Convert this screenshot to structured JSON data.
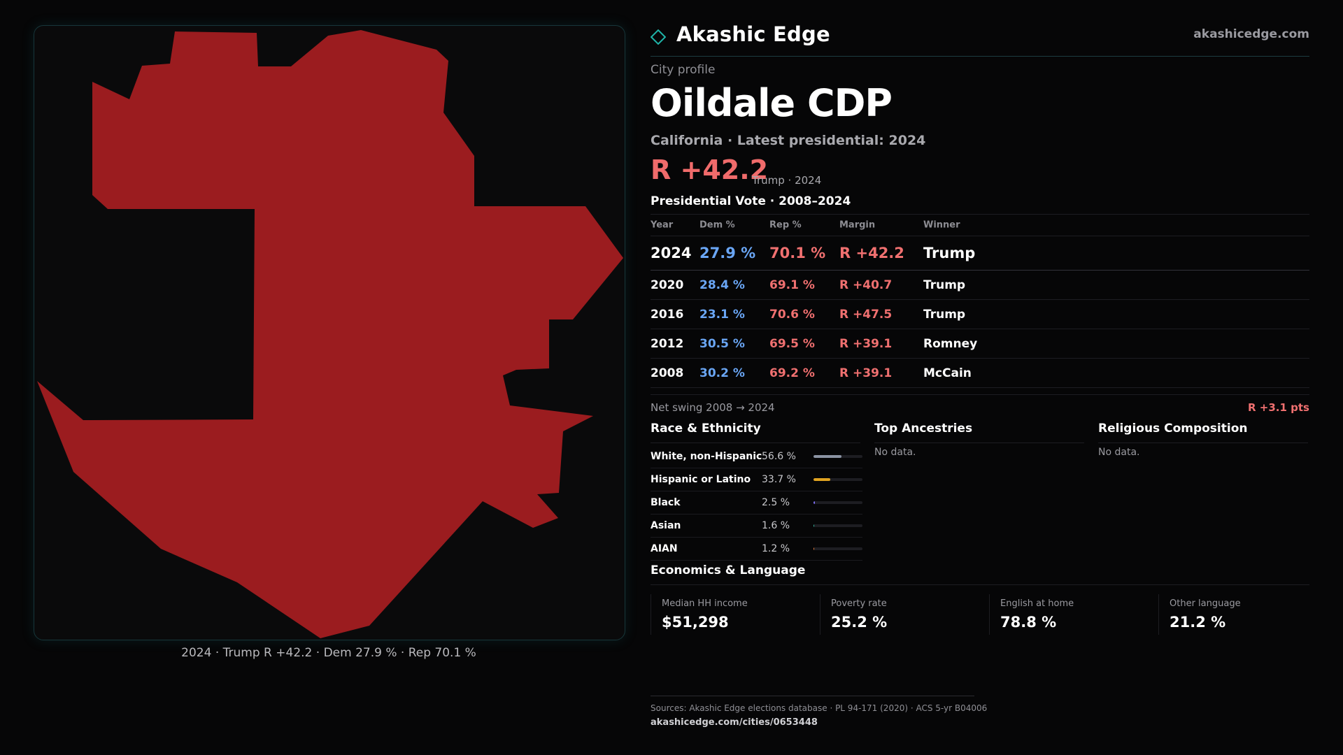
{
  "brand": {
    "name": "Akashic Edge",
    "site": "akashicedge.com",
    "accent": "#1fb3a8"
  },
  "map": {
    "fill_color": "#9b1c1f",
    "caption": "2024 · Trump R +42.2 · Dem 27.9 % · Rep 70.1 %"
  },
  "profile": {
    "eyebrow": "City profile",
    "title": "Oildale CDP",
    "subtitle": "California · Latest presidential: 2024",
    "margin": "R +42.2",
    "margin_sub": "Trump · 2024"
  },
  "vote": {
    "title": "Presidential Vote · 2008–2024",
    "headers": [
      "Year",
      "Dem %",
      "Rep %",
      "Margin",
      "Winner"
    ],
    "rows": [
      {
        "year": "2024",
        "dem": "27.9 %",
        "rep": "70.1 %",
        "margin": "R +42.2",
        "winner": "Trump"
      },
      {
        "year": "2020",
        "dem": "28.4 %",
        "rep": "69.1 %",
        "margin": "R +40.7",
        "winner": "Trump"
      },
      {
        "year": "2016",
        "dem": "23.1 %",
        "rep": "70.6 %",
        "margin": "R +47.5",
        "winner": "Trump"
      },
      {
        "year": "2012",
        "dem": "30.5 %",
        "rep": "69.5 %",
        "margin": "R +39.1",
        "winner": "Romney"
      },
      {
        "year": "2008",
        "dem": "30.2 %",
        "rep": "69.2 %",
        "margin": "R +39.1",
        "winner": "McCain"
      }
    ],
    "swing_label": "Net swing 2008 → 2024",
    "swing_value": "R +3.1 pts"
  },
  "race": {
    "title": "Race & Ethnicity",
    "rows": [
      {
        "name": "White, non-Hispanic",
        "pct": "56.6 %",
        "share": 0.566,
        "color": "#8b93a3"
      },
      {
        "name": "Hispanic or Latino",
        "pct": "33.7 %",
        "share": 0.337,
        "color": "#e0a321"
      },
      {
        "name": "Black",
        "pct": "2.5 %",
        "share": 0.025,
        "color": "#7b6cf0"
      },
      {
        "name": "Asian",
        "pct": "1.6 %",
        "share": 0.016,
        "color": "#2fb39a"
      },
      {
        "name": "AIAN",
        "pct": "1.2 %",
        "share": 0.012,
        "color": "#e07a3a"
      }
    ]
  },
  "ancestries": {
    "title": "Top Ancestries",
    "empty": "No data."
  },
  "religion": {
    "title": "Religious Composition",
    "empty": "No data."
  },
  "economics": {
    "title": "Economics & Language",
    "items": [
      {
        "label": "Median HH income",
        "value": "$51,298"
      },
      {
        "label": "Poverty rate",
        "value": "25.2 %"
      },
      {
        "label": "English at home",
        "value": "78.8 %"
      },
      {
        "label": "Other language",
        "value": "21.2 %"
      }
    ]
  },
  "sources": {
    "line": "Sources: Akashic Edge elections database · PL 94-171 (2020) · ACS 5-yr B04006",
    "url": "akashicedge.com/cities/0653448"
  }
}
